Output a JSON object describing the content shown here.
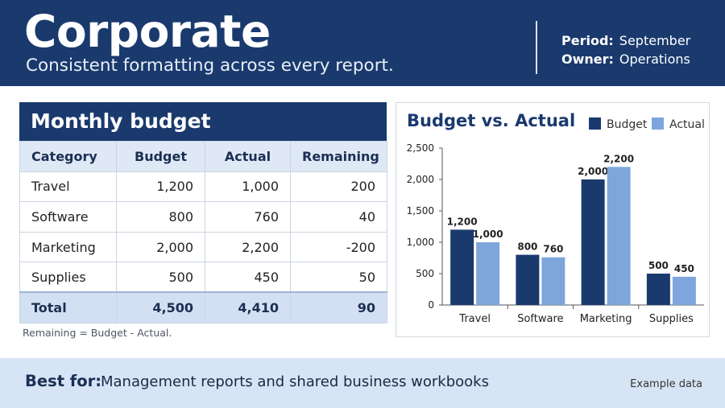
{
  "header": {
    "title": "Corporate",
    "subtitle": "Consistent formatting across every report.",
    "period_label": "Period:",
    "period_value": "September",
    "owner_label": "Owner:",
    "owner_value": "Operations"
  },
  "table": {
    "title": "Monthly budget",
    "columns": [
      "Category",
      "Budget",
      "Actual",
      "Remaining"
    ],
    "rows": [
      [
        "Travel",
        "1,200",
        "1,000",
        "200"
      ],
      [
        "Software",
        "800",
        "760",
        "40"
      ],
      [
        "Marketing",
        "2,000",
        "2,200",
        "-200"
      ],
      [
        "Supplies",
        "500",
        "450",
        "50"
      ]
    ],
    "total": [
      "Total",
      "4,500",
      "4,410",
      "90"
    ],
    "note": "Remaining = Budget - Actual."
  },
  "chart_data": {
    "type": "bar",
    "title": "Budget vs. Actual",
    "categories": [
      "Travel",
      "Software",
      "Marketing",
      "Supplies"
    ],
    "series": [
      {
        "name": "Budget",
        "values": [
          1200,
          800,
          2000,
          500
        ],
        "color": "#1a3a6e"
      },
      {
        "name": "Actual",
        "values": [
          1000,
          760,
          2200,
          450
        ],
        "color": "#7ea6dc"
      }
    ],
    "ylim": [
      0,
      2500
    ],
    "yticks": [
      0,
      500,
      1000,
      1500,
      2000,
      2500
    ],
    "ytick_labels": [
      "0",
      "500",
      "1,000",
      "1,500",
      "2,000",
      "2,500"
    ],
    "data_labels": true,
    "grid": false,
    "legend": "top-right"
  },
  "footer": {
    "label": "Best for:",
    "value": "Management reports and shared business workbooks",
    "example": "Example data"
  }
}
